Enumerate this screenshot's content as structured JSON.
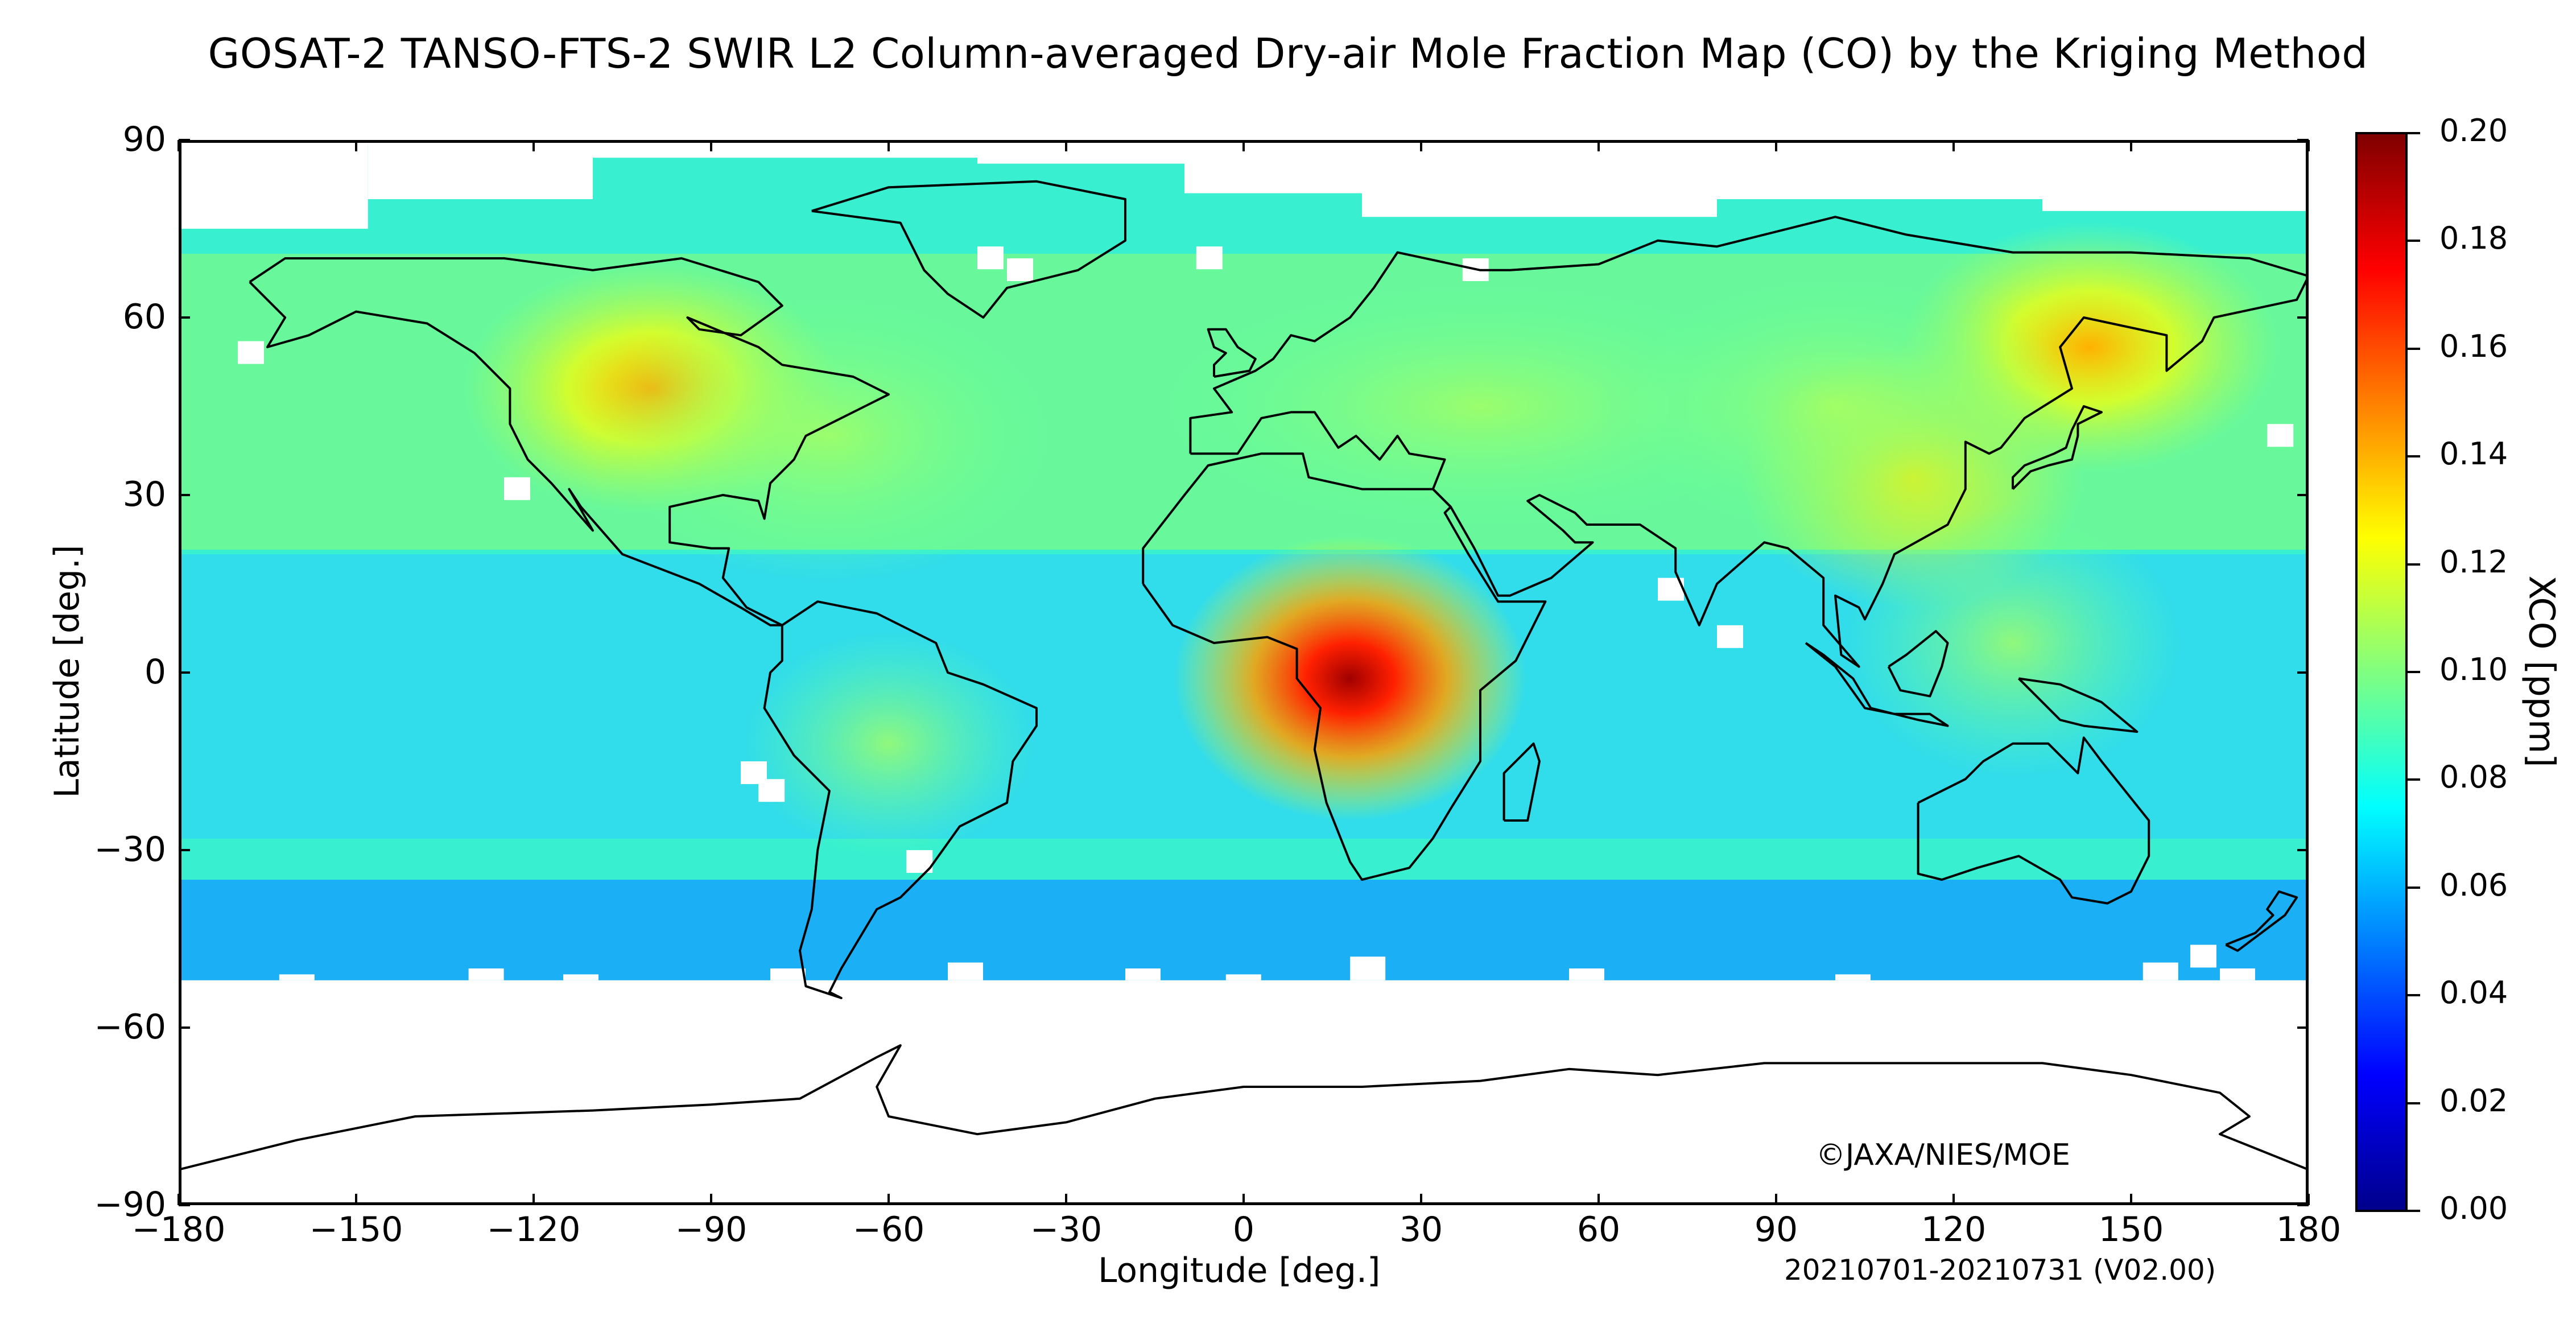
{
  "title": "GOSAT-2 TANSO-FTS-2 SWIR L2 Column-averaged Dry-air Mole Fraction Map (CO) by the Kriging Method",
  "map": {
    "xlabel": "Longitude [deg.]",
    "ylabel": "Latitude [deg.]",
    "credit": "©JAXA/NIES/MOE",
    "period": "20210701-20210731 (V02.00)",
    "x_ticks": [
      "−180",
      "−150",
      "−120",
      "−90",
      "−60",
      "−30",
      "0",
      "30",
      "60",
      "90",
      "120",
      "150",
      "180"
    ],
    "y_ticks": [
      "90",
      "60",
      "30",
      "0",
      "−30",
      "−60",
      "−90"
    ],
    "xlim": [
      -180,
      180
    ],
    "ylim": [
      -90,
      90
    ],
    "data_coverage_lat": [
      -52,
      75
    ],
    "features": [
      {
        "name": "Central Africa",
        "lon": 18,
        "lat": -1,
        "xco_ppm": 0.19
      },
      {
        "name": "Eastern Siberia",
        "lon": 143,
        "lat": 55,
        "xco_ppm": 0.15
      },
      {
        "name": "Canada",
        "lon": -100,
        "lat": 48,
        "xco_ppm": 0.14
      },
      {
        "name": "East China",
        "lon": 113,
        "lat": 33,
        "xco_ppm": 0.13
      },
      {
        "name": "Southern mid-latitudes",
        "lon": 0,
        "lat": -45,
        "xco_ppm": 0.06
      }
    ]
  },
  "colorbar": {
    "title": "XCO [ppm]",
    "min": 0.0,
    "max": 0.2,
    "labels": [
      "0.20",
      "0.18",
      "0.16",
      "0.14",
      "0.12",
      "0.10",
      "0.08",
      "0.06",
      "0.04",
      "0.02",
      "0.00"
    ],
    "colormap": "jet",
    "stops": [
      "#00008b",
      "#0000ff",
      "#0080ff",
      "#00ffff",
      "#80ff80",
      "#ffff00",
      "#ff8000",
      "#ff0000",
      "#800000"
    ]
  }
}
